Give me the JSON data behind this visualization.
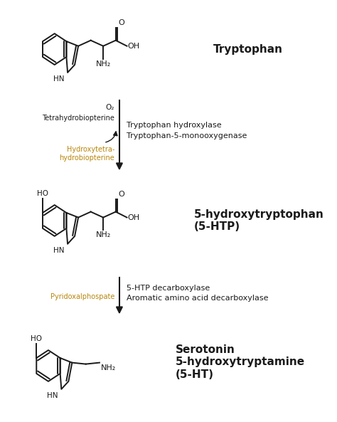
{
  "bg_color": "#ffffff",
  "orange_color": "#b8860b",
  "black_color": "#1a1a1a",
  "fig_width": 4.74,
  "fig_height": 5.93,
  "compound1_name": "Tryptophan",
  "compound2_name": "5-hydroxytryptophan\n(5-HTP)",
  "compound3_name": "Serotonin\n5-hydroxytryptamine\n(5-HT)",
  "enzyme1_line1": "Tryptophan hydroxylase",
  "enzyme1_line2": "Tryptophan-5-monooxygenase",
  "enzyme2_line1": "5-HTP decarboxylase",
  "enzyme2_line2": "Aromatic amino acid decarboxylase",
  "cofactor1_top": "O₂",
  "cofactor1_left1": "Tetrahydrobiopterine",
  "cofactor1_left2": "Hydroxytetra-\nhydrobiopterine",
  "cofactor2_left": "Pyridoxalphospate"
}
